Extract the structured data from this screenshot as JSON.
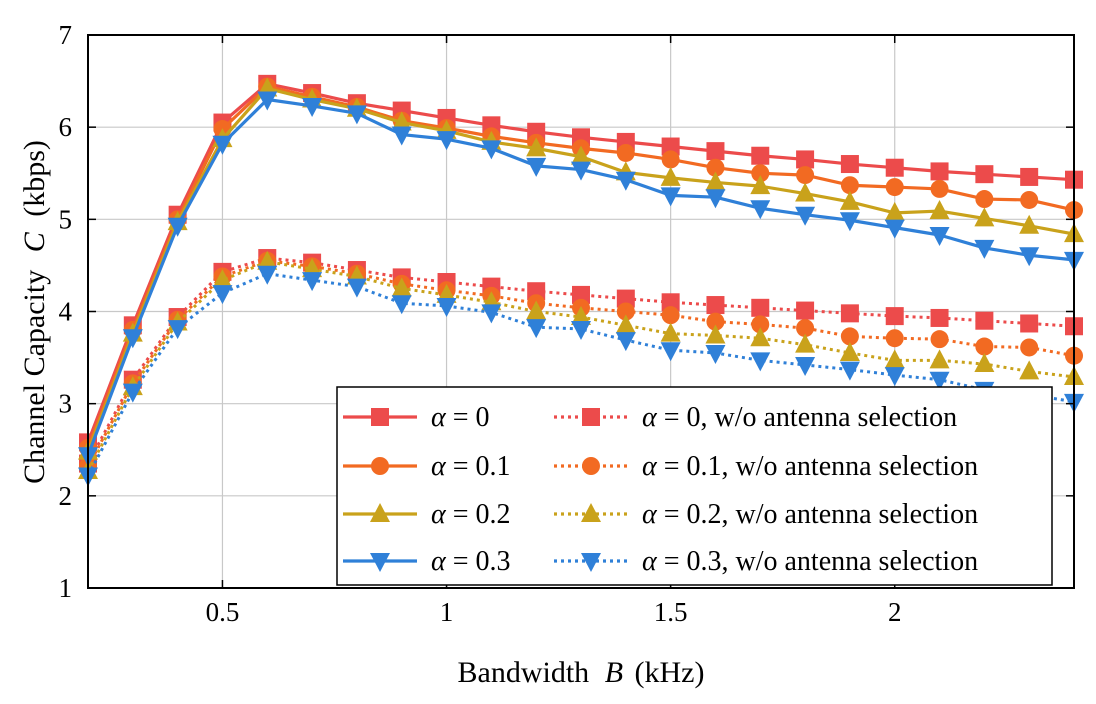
{
  "chart_data": {
    "type": "line",
    "title": "",
    "xlabel_text": "Bandwidth",
    "xlabel_var": "B",
    "xlabel_unit": "(kHz)",
    "ylabel_text": "Channel Capacity",
    "ylabel_var": "C",
    "ylabel_unit": "(kbps)",
    "xlim": [
      0.2,
      2.4
    ],
    "ylim": [
      1,
      7
    ],
    "xticks": [
      0.5,
      1,
      1.5,
      2
    ],
    "xtick_labels": [
      "0.5",
      "1",
      "1.5",
      "2"
    ],
    "yticks": [
      1,
      2,
      3,
      4,
      5,
      6,
      7
    ],
    "ytick_labels": [
      "1",
      "2",
      "3",
      "4",
      "5",
      "6",
      "7"
    ],
    "grid": true,
    "legend_position": "bottom-right",
    "x": [
      0.2,
      0.3,
      0.4,
      0.5,
      0.6,
      0.7,
      0.8,
      0.9,
      1.0,
      1.1,
      1.2,
      1.3,
      1.4,
      1.5,
      1.6,
      1.7,
      1.8,
      1.9,
      2.0,
      2.1,
      2.2,
      2.3,
      2.4
    ],
    "series": [
      {
        "name": "α = 0",
        "symbol": "α",
        "suffix": " = 0",
        "color": "#ec4b4b",
        "marker": "square",
        "dash": "solid",
        "values": [
          2.58,
          3.85,
          5.05,
          6.05,
          6.47,
          6.37,
          6.26,
          6.18,
          6.1,
          6.02,
          5.95,
          5.89,
          5.84,
          5.79,
          5.74,
          5.69,
          5.65,
          5.6,
          5.56,
          5.52,
          5.49,
          5.46,
          5.43
        ]
      },
      {
        "name": "α = 0.1",
        "symbol": "α",
        "suffix": " = 0.1",
        "color": "#f26a22",
        "marker": "circle",
        "dash": "solid",
        "values": [
          2.52,
          3.8,
          5.0,
          5.98,
          6.44,
          6.33,
          6.22,
          6.07,
          5.99,
          5.9,
          5.83,
          5.77,
          5.72,
          5.65,
          5.56,
          5.5,
          5.48,
          5.37,
          5.35,
          5.33,
          5.22,
          5.21,
          5.1
        ]
      },
      {
        "name": "α = 0.2",
        "symbol": "α",
        "suffix": " = 0.2",
        "color": "#c9a21b",
        "marker": "triangle-up",
        "dash": "solid",
        "values": [
          2.48,
          3.76,
          4.97,
          5.87,
          6.42,
          6.3,
          6.2,
          6.05,
          5.96,
          5.84,
          5.77,
          5.68,
          5.51,
          5.45,
          5.4,
          5.36,
          5.28,
          5.19,
          5.07,
          5.09,
          5.01,
          4.93,
          4.84
        ]
      },
      {
        "name": "α = 0.3",
        "symbol": "α",
        "suffix": " = 0.3",
        "color": "#2f80d8",
        "marker": "triangle-down",
        "dash": "solid",
        "values": [
          2.44,
          3.72,
          4.93,
          5.82,
          6.3,
          6.23,
          6.15,
          5.92,
          5.87,
          5.77,
          5.58,
          5.54,
          5.43,
          5.26,
          5.24,
          5.12,
          5.05,
          4.99,
          4.91,
          4.83,
          4.69,
          4.61,
          4.56
        ]
      },
      {
        "name": "α = 0, w/o antenna selection",
        "symbol": "α",
        "suffix": " = 0, w/o antenna selection",
        "color": "#ec4b4b",
        "marker": "square",
        "dash": "dotted",
        "values": [
          2.35,
          3.26,
          3.94,
          4.43,
          4.58,
          4.53,
          4.45,
          4.37,
          4.32,
          4.27,
          4.22,
          4.18,
          4.14,
          4.1,
          4.07,
          4.04,
          4.01,
          3.98,
          3.95,
          3.93,
          3.9,
          3.87,
          3.84
        ]
      },
      {
        "name": "α = 0.1, w/o antenna selection",
        "symbol": "α",
        "suffix": " = 0.1, w/o antenna selection",
        "color": "#f26a22",
        "marker": "circle",
        "dash": "dotted",
        "values": [
          2.32,
          3.22,
          3.91,
          4.38,
          4.55,
          4.49,
          4.41,
          4.3,
          4.23,
          4.17,
          4.09,
          4.04,
          4.0,
          3.96,
          3.89,
          3.86,
          3.82,
          3.73,
          3.71,
          3.7,
          3.62,
          3.61,
          3.52
        ]
      },
      {
        "name": "α = 0.2, w/o antenna selection",
        "symbol": "α",
        "suffix": " = 0.2, w/o antenna selection",
        "color": "#c9a21b",
        "marker": "triangle-up",
        "dash": "dotted",
        "values": [
          2.27,
          3.18,
          3.88,
          4.34,
          4.54,
          4.46,
          4.38,
          4.25,
          4.18,
          4.1,
          4.0,
          3.94,
          3.85,
          3.76,
          3.74,
          3.71,
          3.64,
          3.55,
          3.47,
          3.47,
          3.43,
          3.35,
          3.29
        ]
      },
      {
        "name": "α = 0.3, w/o antenna selection",
        "symbol": "α",
        "suffix": " = 0.3, w/o antenna selection",
        "color": "#2f80d8",
        "marker": "triangle-down",
        "dash": "dotted",
        "values": [
          2.22,
          3.13,
          3.82,
          4.2,
          4.41,
          4.34,
          4.27,
          4.09,
          4.06,
          3.99,
          3.83,
          3.81,
          3.69,
          3.58,
          3.55,
          3.47,
          3.42,
          3.37,
          3.31,
          3.26,
          3.15,
          3.1,
          3.02
        ]
      }
    ]
  }
}
